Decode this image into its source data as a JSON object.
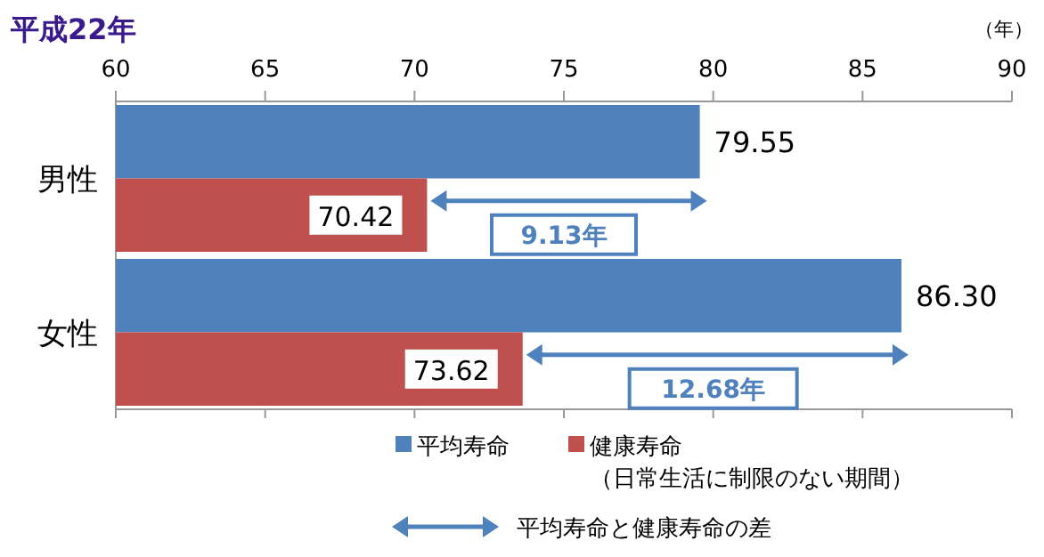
{
  "chart_data": {
    "type": "bar",
    "orientation": "horizontal",
    "title": "平成22年",
    "xlabel": "（年）",
    "categories": [
      "男性",
      "女性"
    ],
    "series": [
      {
        "name": "平均寿命",
        "color": "#4f81bd",
        "values": [
          79.55,
          86.3
        ],
        "value_labels": [
          "79.55",
          "86.30"
        ]
      },
      {
        "name": "健康寿命（日常生活に制限のない期間）",
        "color": "#c0504d",
        "values": [
          70.42,
          73.62
        ],
        "value_labels": [
          "70.42",
          "73.62"
        ]
      }
    ],
    "xlim": [
      60,
      90
    ],
    "xticks": [
      60,
      65,
      70,
      75,
      80,
      85,
      90
    ],
    "grid": false,
    "legend": "bottom",
    "annotations": [
      {
        "text": "9.13年",
        "x": 75,
        "y": "男性"
      },
      {
        "text": "12.68年",
        "x": 80,
        "y": "女性"
      },
      "平均寿命と健康寿命の差"
    ]
  }
}
